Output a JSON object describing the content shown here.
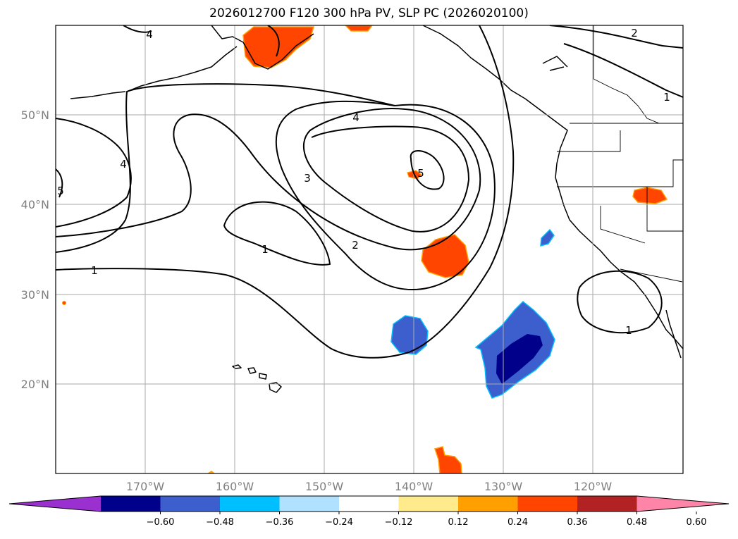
{
  "title": "2026012700 F120 300 hPa PV, SLP PC (2026020100)",
  "lat_labels": [
    "50°N",
    "40°N",
    "30°N",
    "20°N"
  ],
  "lon_labels": [
    "170°W",
    "160°W",
    "150°W",
    "140°W",
    "130°W",
    "120°W"
  ],
  "colorbar": {
    "colors": [
      "#9b30d0",
      "#00008b",
      "#3c5fcd",
      "#00bfff",
      "#b0e2ff",
      "#ffffff",
      "#ffea8c",
      "#ffa000",
      "#ff4500",
      "#b22222",
      "#ff85a8"
    ],
    "tick_labels": [
      "−0.60",
      "−0.48",
      "−0.36",
      "−0.24",
      "−0.12",
      "0.12",
      "0.24",
      "0.36",
      "0.48",
      "0.60"
    ]
  },
  "contour_labels": {
    "c4_top": "4",
    "c2_top": "2",
    "c1_right": "1",
    "c4_left": "4",
    "c5_left": "5",
    "c4_center": "4",
    "c5_center": "5",
    "c3": "3",
    "c2": "2",
    "c1_mid": "1",
    "c1_left": "1",
    "c1_calif": "1"
  }
}
